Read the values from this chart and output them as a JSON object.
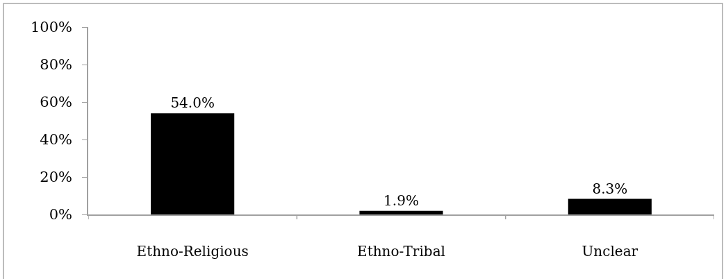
{
  "chart_data": {
    "type": "bar",
    "categories": [
      "Ethno-Religious",
      "Ethno-Tribal",
      "Unclear"
    ],
    "values": [
      54.0,
      1.9,
      8.3
    ],
    "value_labels": [
      "54.0%",
      "1.9%",
      "8.3%"
    ],
    "color": "#000000",
    "ylim": [
      0,
      100
    ],
    "yticks": [
      {
        "value": 0,
        "label": "0%"
      },
      {
        "value": 20,
        "label": "20%"
      },
      {
        "value": 40,
        "label": "40%"
      },
      {
        "value": 60,
        "label": "60%"
      },
      {
        "value": 80,
        "label": "80%"
      },
      {
        "value": 100,
        "label": "100%"
      }
    ]
  }
}
